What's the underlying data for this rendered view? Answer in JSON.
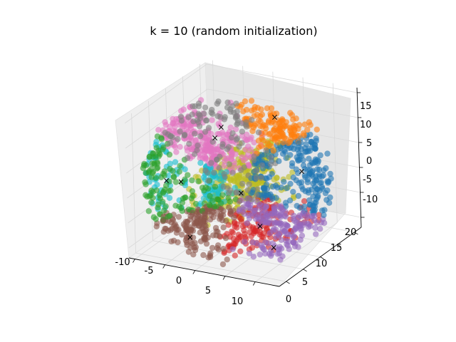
{
  "chart_data": {
    "type": "scatter",
    "projection": "3d",
    "title": "k = 10 (random initialization)",
    "xlabel": "",
    "ylabel": "",
    "zlabel": "",
    "xlim": [
      -11,
      14
    ],
    "ylim": [
      -2,
      22
    ],
    "zlim": [
      -12,
      16
    ],
    "x_ticks": [
      "-10",
      "-5",
      "0",
      "5",
      "10"
    ],
    "y_ticks": [
      "0",
      "5",
      "10",
      "15",
      "20"
    ],
    "z_ticks": [
      "-10",
      "-5",
      "0",
      "5",
      "10",
      "15"
    ],
    "grid": true,
    "legend": "none",
    "marker_alpha": 0.6,
    "clusters": [
      {
        "color": "#1f77b4",
        "center": [
          9,
          14,
          2
        ]
      },
      {
        "color": "#ff7f0e",
        "center": [
          3,
          17,
          10
        ]
      },
      {
        "color": "#2ca02c",
        "center": [
          -9,
          6,
          0
        ]
      },
      {
        "color": "#d62728",
        "center": [
          7,
          5,
          -5
        ]
      },
      {
        "color": "#9467bd",
        "center": [
          8,
          7,
          -10
        ]
      },
      {
        "color": "#8c564b",
        "center": [
          -3,
          2,
          -8
        ]
      },
      {
        "color": "#e377c2",
        "center": [
          -3,
          10,
          8
        ]
      },
      {
        "color": "#7f7f7f",
        "center": [
          -6,
          17,
          6
        ]
      },
      {
        "color": "#bcbd22",
        "center": [
          4,
          5,
          1
        ]
      },
      {
        "color": "#17becf",
        "center": [
          -6,
          5,
          1
        ]
      }
    ]
  }
}
